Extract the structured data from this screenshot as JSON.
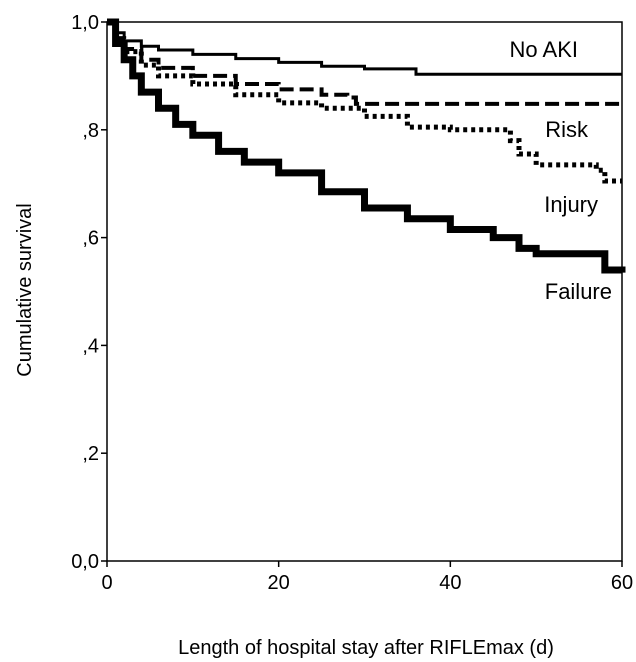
{
  "chart_data": {
    "type": "line",
    "title": "",
    "xlabel": "Length of hospital stay after RIFLEmax (d)",
    "ylabel": "Cumulative survival",
    "xlim": [
      0,
      60
    ],
    "ylim": [
      0,
      1
    ],
    "x_ticks": [
      {
        "value": 0,
        "label": "0"
      },
      {
        "value": 20,
        "label": "20"
      },
      {
        "value": 40,
        "label": "40"
      },
      {
        "value": 60,
        "label": "60"
      }
    ],
    "y_ticks": [
      {
        "value": 0.0,
        "label": "0,0"
      },
      {
        "value": 0.2,
        "label": ",2"
      },
      {
        "value": 0.4,
        "label": ",4"
      },
      {
        "value": 0.6,
        "label": ",6"
      },
      {
        "value": 0.8,
        "label": ",8"
      },
      {
        "value": 1.0,
        "label": "1,0"
      }
    ],
    "grid": false,
    "series": [
      {
        "name": "No AKI",
        "style": "solid",
        "x": [
          0,
          1,
          2,
          4,
          6,
          10,
          15,
          20,
          25,
          30,
          36,
          40,
          50,
          60
        ],
        "y": [
          1.0,
          0.98,
          0.965,
          0.955,
          0.948,
          0.94,
          0.932,
          0.925,
          0.918,
          0.913,
          0.903,
          0.903,
          0.903,
          0.903
        ]
      },
      {
        "name": "Risk",
        "style": "dashed",
        "x": [
          0,
          1,
          2,
          4,
          6,
          10,
          15,
          20,
          25,
          28,
          29,
          35,
          40,
          50,
          60
        ],
        "y": [
          1.0,
          0.97,
          0.95,
          0.93,
          0.915,
          0.9,
          0.885,
          0.875,
          0.865,
          0.86,
          0.848,
          0.848,
          0.848,
          0.848,
          0.848
        ]
      },
      {
        "name": "Injury",
        "style": "dotted",
        "x": [
          0,
          1,
          2,
          4,
          6,
          10,
          15,
          20,
          25,
          30,
          35,
          40,
          45,
          47,
          48,
          50,
          55,
          57,
          58,
          60
        ],
        "y": [
          1.0,
          0.965,
          0.945,
          0.92,
          0.9,
          0.885,
          0.865,
          0.85,
          0.84,
          0.825,
          0.805,
          0.8,
          0.8,
          0.78,
          0.755,
          0.735,
          0.735,
          0.725,
          0.705,
          0.705
        ]
      },
      {
        "name": "Failure",
        "style": "thick",
        "x": [
          0,
          1,
          2,
          3,
          4,
          6,
          8,
          10,
          13,
          16,
          20,
          25,
          30,
          35,
          40,
          45,
          48,
          50,
          55,
          58,
          60
        ],
        "y": [
          1.0,
          0.96,
          0.93,
          0.9,
          0.87,
          0.84,
          0.81,
          0.79,
          0.76,
          0.74,
          0.72,
          0.685,
          0.655,
          0.635,
          0.615,
          0.6,
          0.58,
          0.57,
          0.57,
          0.54,
          0.535
        ]
      }
    ]
  }
}
